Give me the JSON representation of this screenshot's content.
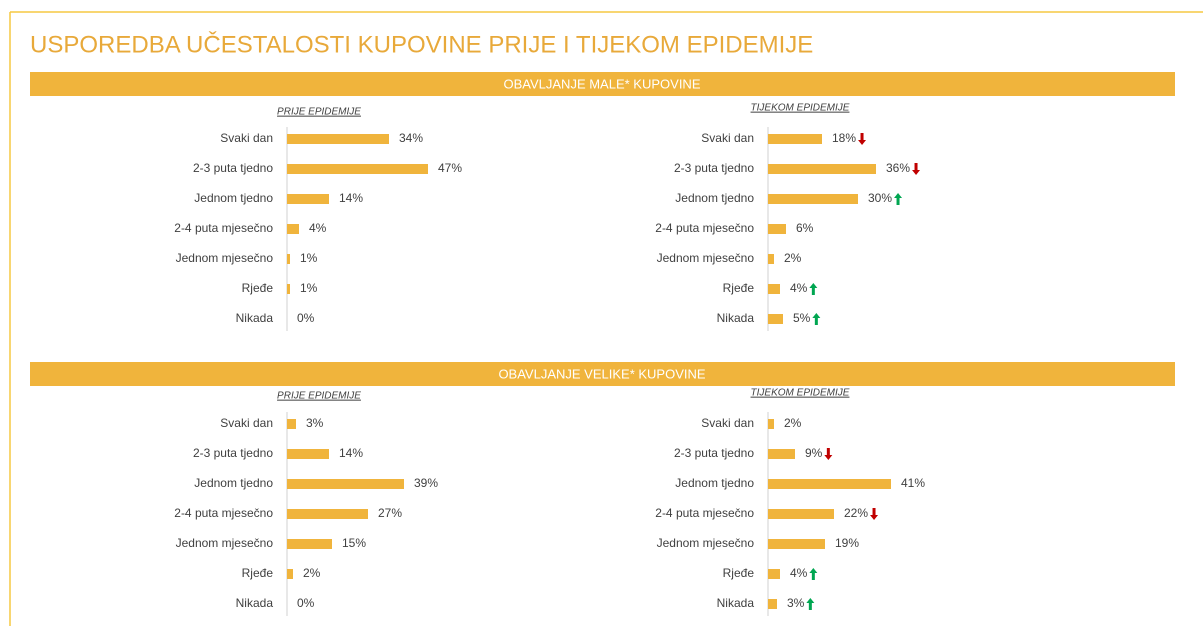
{
  "title": "USPOREDBA UČESTALOSTI KUPOVINE PRIJE I TIJEKOM EPIDEMIJE",
  "sections": [
    "OBAVLJANJE MALE* KUPOVINE",
    "OBAVLJANJE VELIKE* KUPOVINE"
  ],
  "trend_colors": {
    "up": "#00a651",
    "down": "#c00000"
  },
  "chart_data": [
    {
      "type": "bar",
      "orientation": "horizontal",
      "title": "PRIJE EPIDEMIJE",
      "categories": [
        "Svaki dan",
        "2-3 puta tjedno",
        "Jednom tjedno",
        "2-4 puta mjesečno",
        "Jednom mjesečno",
        "Rjeđe",
        "Nikada"
      ],
      "values": [
        34,
        47,
        14,
        4,
        1,
        1,
        0
      ],
      "value_labels": [
        "34%",
        "47%",
        "14%",
        "4%",
        "1%",
        "1%",
        "0%"
      ],
      "color": "#f0b43c",
      "trends": [
        null,
        null,
        null,
        null,
        null,
        null,
        null
      ]
    },
    {
      "type": "bar",
      "orientation": "horizontal",
      "title": "TIJEKOM EPIDEMIJE",
      "categories": [
        "Svaki dan",
        "2-3 puta tjedno",
        "Jednom tjedno",
        "2-4 puta mjesečno",
        "Jednom mjesečno",
        "Rjeđe",
        "Nikada"
      ],
      "values": [
        18,
        36,
        30,
        6,
        2,
        4,
        5
      ],
      "value_labels": [
        "18%",
        "36%",
        "30%",
        "6%",
        "2%",
        "4%",
        "5%"
      ],
      "color": "#f0b43c",
      "trends": [
        "down",
        "down",
        "up",
        null,
        null,
        "up",
        "up"
      ]
    },
    {
      "type": "bar",
      "orientation": "horizontal",
      "title": "PRIJE EPIDEMIJE",
      "categories": [
        "Svaki dan",
        "2-3 puta tjedno",
        "Jednom tjedno",
        "2-4 puta mjesečno",
        "Jednom mjesečno",
        "Rjeđe",
        "Nikada"
      ],
      "values": [
        3,
        14,
        39,
        27,
        15,
        2,
        0
      ],
      "value_labels": [
        "3%",
        "14%",
        "39%",
        "27%",
        "15%",
        "2%",
        "0%"
      ],
      "color": "#f0b43c",
      "trends": [
        null,
        null,
        null,
        null,
        null,
        null,
        null
      ]
    },
    {
      "type": "bar",
      "orientation": "horizontal",
      "title": "TIJEKOM EPIDEMIJE",
      "categories": [
        "Svaki dan",
        "2-3 puta tjedno",
        "Jednom tjedno",
        "2-4 puta mjesečno",
        "Jednom mjesečno",
        "Rjeđe",
        "Nikada"
      ],
      "values": [
        2,
        9,
        41,
        22,
        19,
        4,
        3
      ],
      "value_labels": [
        "2%",
        "9%",
        "41%",
        "22%",
        "19%",
        "4%",
        "3%"
      ],
      "color": "#f0b43c",
      "trends": [
        null,
        "down",
        null,
        "down",
        null,
        "up",
        "up"
      ]
    }
  ]
}
